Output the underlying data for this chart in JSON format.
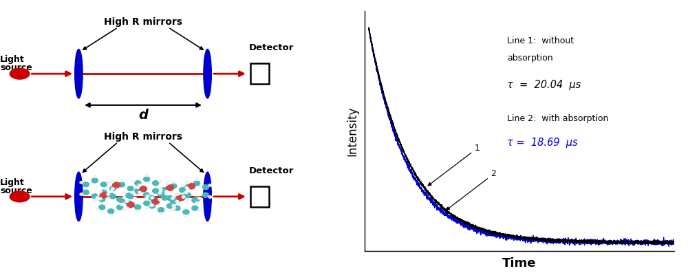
{
  "bg_color": "#ffffff",
  "tau1": 20.04,
  "tau2": 18.69,
  "line1_color": "#000000",
  "line2_color": "#0000cc",
  "mirror_color": "#0000cd",
  "source_color": "#cc0000",
  "arrow_color": "#cc0000",
  "teal_color": "#4ab8b8",
  "pink_color": "#cc4444",
  "white_color": "#f0f0f0",
  "label1_line1": "Line 1:  without",
  "label1_line2": "absorption",
  "tau1_label": "τ  =  20.04  μs",
  "label2": "Line 2:  with absorption",
  "tau2_label": "τ =  18.69  μs",
  "xlabel": "Time",
  "ylabel": "Intensity",
  "d_label": "d",
  "hrm_label": "High R mirrors",
  "detector_label": "Detector",
  "light_source_label": "Light\nsource"
}
